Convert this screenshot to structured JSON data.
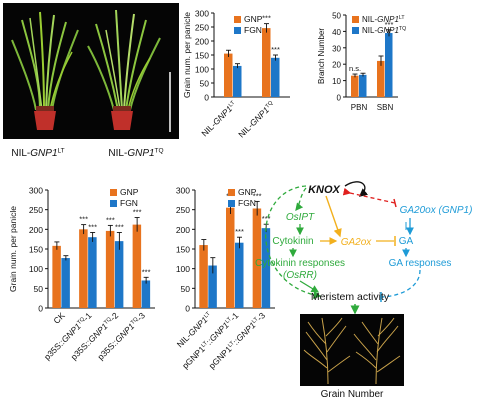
{
  "colors": {
    "orange": "#E8731E",
    "blue": "#1E77C8",
    "green": "#2FAA3C",
    "gold": "#F2B01E",
    "cyan": "#1E9BD7",
    "red": "#E0201E",
    "black": "#111111",
    "photo_bg": "#050505"
  },
  "photo": {
    "labels": [
      {
        "prefix": "NIL-",
        "gene": "GNP1",
        "sup": "LT"
      },
      {
        "prefix": "NIL-",
        "gene": "GNP1",
        "sup": "TQ"
      }
    ]
  },
  "bottom_photo": {
    "caption": "Grain Number"
  },
  "chart_data": [
    {
      "id": "A",
      "type": "bar",
      "ylabel": "Grain num. per panicle",
      "ylim": [
        0,
        300
      ],
      "yticks": [
        0,
        50,
        100,
        150,
        200,
        250,
        300
      ],
      "legend": [
        "GNP",
        "FGN"
      ],
      "legend_position": "top-left",
      "categories": [
        {
          "prefix": "NIL-",
          "gene": "GNP1",
          "sup": "LT"
        },
        {
          "prefix": "NIL-",
          "gene": "GNP1",
          "sup": "TQ"
        }
      ],
      "series": [
        {
          "name": "GNP",
          "values": [
            155,
            246
          ],
          "errors": [
            12,
            16
          ],
          "marks": [
            "",
            "***"
          ]
        },
        {
          "name": "FGN",
          "values": [
            111,
            140
          ],
          "errors": [
            8,
            10
          ],
          "marks": [
            "",
            "***"
          ]
        }
      ]
    },
    {
      "id": "B",
      "type": "bar",
      "ylabel": "Branch Number",
      "ylim": [
        0,
        50
      ],
      "yticks": [
        0,
        10,
        20,
        30,
        40,
        50
      ],
      "legend": [
        {
          "prefix": "NIL-",
          "gene": "GNP1",
          "sup": "LT"
        },
        {
          "prefix": "NIL-",
          "gene": "GNP1",
          "sup": "TQ"
        }
      ],
      "legend_position": "top-left",
      "categories": [
        "PBN",
        "SBN"
      ],
      "series": [
        {
          "values": [
            13,
            22
          ],
          "errors": [
            1,
            3
          ],
          "marks": [
            "n.s.",
            ""
          ]
        },
        {
          "values": [
            13.5,
            39
          ],
          "errors": [
            1,
            2
          ],
          "marks": [
            "",
            "***"
          ]
        }
      ]
    },
    {
      "id": "C",
      "type": "bar",
      "ylabel": "Grain num. per panicle",
      "ylim": [
        0,
        300
      ],
      "yticks": [
        0,
        50,
        100,
        150,
        200,
        250,
        300
      ],
      "legend": [
        "GNP",
        "FGN"
      ],
      "legend_position": "top-right",
      "categories": [
        {
          "prefix": "CK",
          "gene": "",
          "sup": "",
          "suffix": ""
        },
        {
          "prefix": "p35S::",
          "gene": "GNP1",
          "sup": "TQ",
          "suffix": "-1"
        },
        {
          "prefix": "p35S::",
          "gene": "GNP1",
          "sup": "TQ",
          "suffix": "-2"
        },
        {
          "prefix": "p35S::",
          "gene": "GNP1",
          "sup": "TQ",
          "suffix": "-3"
        }
      ],
      "series": [
        {
          "name": "GNP",
          "values": [
            158,
            200,
            196,
            212
          ],
          "errors": [
            10,
            12,
            14,
            18
          ],
          "marks": [
            "",
            "***",
            "***",
            "***"
          ]
        },
        {
          "name": "FGN",
          "values": [
            127,
            180,
            170,
            70
          ],
          "errors": [
            6,
            12,
            22,
            8
          ],
          "marks": [
            "",
            "***",
            "***",
            "***"
          ]
        }
      ]
    },
    {
      "id": "D",
      "type": "bar",
      "ylabel": "",
      "ylim": [
        0,
        300
      ],
      "yticks": [
        0,
        50,
        100,
        150,
        200,
        250,
        300
      ],
      "legend": [
        "GNP",
        "FGN"
      ],
      "legend_position": "top-right",
      "categories": [
        {
          "prefix": "NIL-",
          "gene": "GNP1",
          "sup": "LT",
          "suffix": ""
        },
        {
          "prefix": "pGNP1",
          "gene": "",
          "sup": "LT",
          "prefix2": "::",
          "gene2": "GNP1",
          "sup2": "LT",
          "suffix": "-1"
        },
        {
          "prefix": "pGNP1",
          "gene": "",
          "sup": "LT",
          "prefix2": "::",
          "gene2": "GNP1",
          "sup2": "LT",
          "suffix": "-3"
        }
      ],
      "series": [
        {
          "name": "GNP",
          "values": [
            160,
            255,
            253
          ],
          "errors": [
            14,
            16,
            18
          ],
          "marks": [
            "",
            "***",
            "***"
          ]
        },
        {
          "name": "FGN",
          "values": [
            108,
            166,
            203
          ],
          "errors": [
            20,
            14,
            10
          ],
          "marks": [
            "",
            "***",
            "***"
          ]
        }
      ]
    }
  ],
  "pathway": {
    "KNOX": "KNOX",
    "OsIPT": "OsIPT",
    "GA20ox": "GA20ox (GNP1)",
    "Cytokinin": "Cytokinin",
    "GA2ox": "GA2ox",
    "GA": "GA",
    "CKresp1": "Cytokinin responses",
    "CKresp2": "(OsRR)",
    "GAresp": "GA responses",
    "Meristem": "Meristem activity"
  }
}
